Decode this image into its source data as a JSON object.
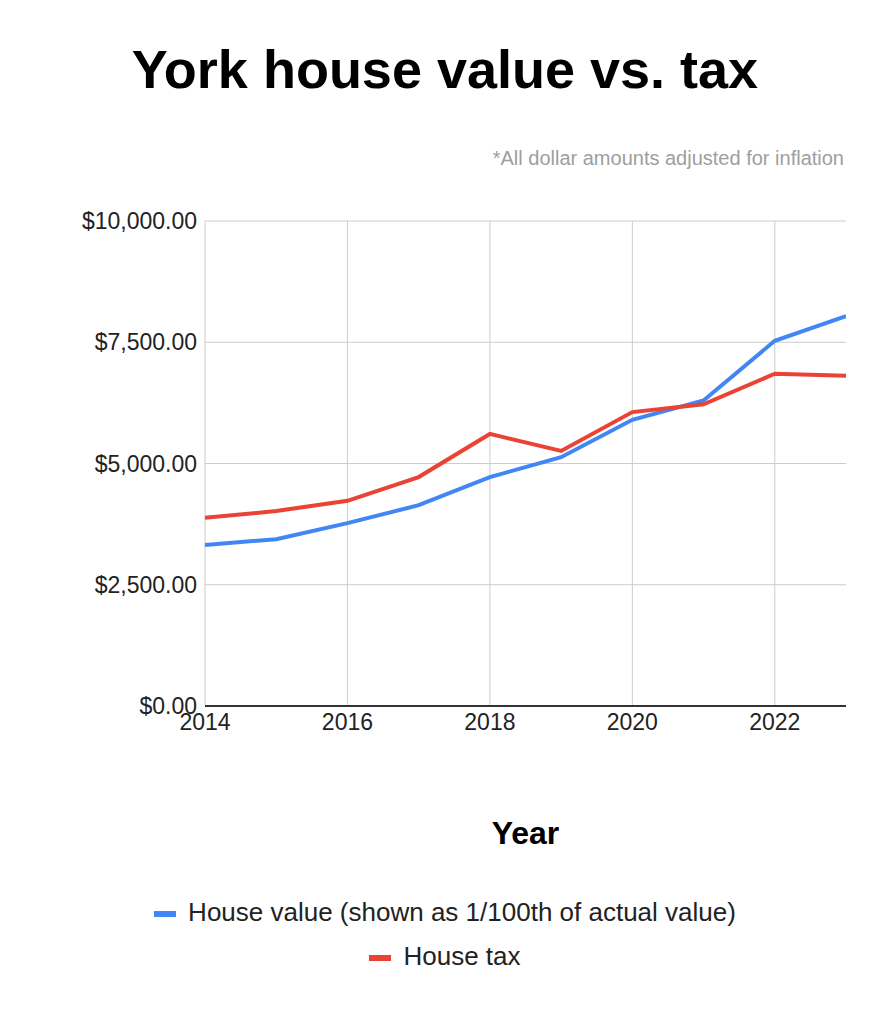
{
  "chart_data": {
    "type": "line",
    "title": "York house value vs. tax",
    "subtitle": "*All dollar amounts adjusted for inflation",
    "x_label": "Year",
    "x": [
      2014,
      2015,
      2016,
      2017,
      2018,
      2019,
      2020,
      2021,
      2022,
      2023
    ],
    "series": [
      {
        "name": "House value (shown as 1/100th of actual value)",
        "color": "#4285f4",
        "values": [
          3320,
          3440,
          3770,
          4140,
          4720,
          5130,
          5900,
          6300,
          7530,
          8040
        ]
      },
      {
        "name": "House tax",
        "color": "#ea4335",
        "values": [
          3880,
          4020,
          4230,
          4720,
          5610,
          5260,
          6060,
          6220,
          6850,
          6810
        ]
      }
    ],
    "xlim": [
      2014,
      2023
    ],
    "xticks": [
      2014,
      2016,
      2018,
      2020,
      2022
    ],
    "ylim": [
      0,
      10000
    ],
    "yticks": [
      {
        "value": 0,
        "label": "$0.00"
      },
      {
        "value": 2500,
        "label": "$2,500.00"
      },
      {
        "value": 5000,
        "label": "$5,000.00"
      },
      {
        "value": 7500,
        "label": "$7,500.00"
      },
      {
        "value": 10000,
        "label": "$10,000.00"
      }
    ],
    "grid": true,
    "legend": "bottom"
  }
}
